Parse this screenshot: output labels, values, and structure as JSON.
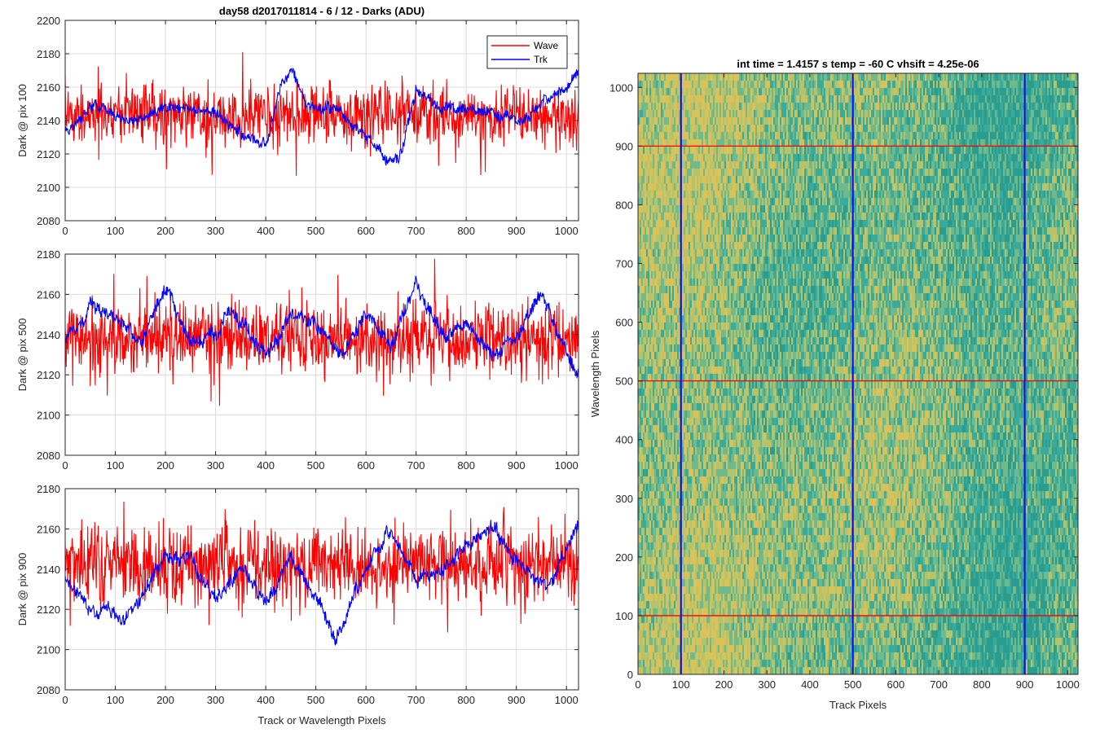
{
  "chart_data": [
    {
      "type": "line",
      "title": "day58 d2017011814 - 6 / 12 - Darks (ADU)",
      "xlabel": "",
      "ylabel": "Dark @ pix 100",
      "xlim": [
        0,
        1024
      ],
      "ylim": [
        2080,
        2200
      ],
      "xticks": [
        0,
        100,
        200,
        300,
        400,
        500,
        600,
        700,
        800,
        900,
        1000
      ],
      "yticks": [
        2080,
        2100,
        2120,
        2140,
        2160,
        2180,
        2200
      ],
      "grid": true,
      "legend": {
        "position": "top-right",
        "entries": [
          "Wave",
          "Trk"
        ]
      },
      "series": [
        {
          "name": "Wave",
          "color": "#ff0000",
          "mean": 2143,
          "noise": 11,
          "features": []
        },
        {
          "name": "Trk",
          "color": "#0000ff",
          "mean": 2143,
          "noise": 4,
          "features": [
            [
              0,
              2133
            ],
            [
              60,
              2150
            ],
            [
              120,
              2140
            ],
            [
              200,
              2148
            ],
            [
              300,
              2145
            ],
            [
              350,
              2132
            ],
            [
              400,
              2125
            ],
            [
              430,
              2160
            ],
            [
              450,
              2172
            ],
            [
              480,
              2150
            ],
            [
              550,
              2145
            ],
            [
              650,
              2115
            ],
            [
              670,
              2120
            ],
            [
              700,
              2158
            ],
            [
              750,
              2148
            ],
            [
              850,
              2145
            ],
            [
              900,
              2140
            ],
            [
              1000,
              2160
            ],
            [
              1024,
              2170
            ]
          ]
        }
      ]
    },
    {
      "type": "line",
      "title": "",
      "xlabel": "",
      "ylabel": "Dark @ pix 500",
      "xlim": [
        0,
        1024
      ],
      "ylim": [
        2080,
        2180
      ],
      "xticks": [
        0,
        100,
        200,
        300,
        400,
        500,
        600,
        700,
        800,
        900,
        1000
      ],
      "yticks": [
        2080,
        2100,
        2120,
        2140,
        2160,
        2180
      ],
      "grid": true,
      "series": [
        {
          "name": "Wave",
          "color": "#ff0000",
          "mean": 2138,
          "noise": 11,
          "features": []
        },
        {
          "name": "Trk",
          "color": "#0000ff",
          "mean": 2142,
          "noise": 4,
          "features": [
            [
              0,
              2135
            ],
            [
              50,
              2155
            ],
            [
              100,
              2150
            ],
            [
              150,
              2135
            ],
            [
              200,
              2165
            ],
            [
              250,
              2135
            ],
            [
              300,
              2140
            ],
            [
              330,
              2152
            ],
            [
              400,
              2130
            ],
            [
              450,
              2150
            ],
            [
              500,
              2145
            ],
            [
              550,
              2130
            ],
            [
              600,
              2150
            ],
            [
              650,
              2135
            ],
            [
              700,
              2165
            ],
            [
              750,
              2140
            ],
            [
              800,
              2145
            ],
            [
              850,
              2130
            ],
            [
              900,
              2140
            ],
            [
              950,
              2160
            ],
            [
              1000,
              2130
            ],
            [
              1024,
              2120
            ]
          ]
        }
      ]
    },
    {
      "type": "line",
      "title": "",
      "xlabel": "Track or Wavelength Pixels",
      "ylabel": "Dark @ pix 900",
      "xlim": [
        0,
        1024
      ],
      "ylim": [
        2080,
        2180
      ],
      "xticks": [
        0,
        100,
        200,
        300,
        400,
        500,
        600,
        700,
        800,
        900,
        1000
      ],
      "yticks": [
        2080,
        2100,
        2120,
        2140,
        2160,
        2180
      ],
      "grid": true,
      "series": [
        {
          "name": "Wave",
          "color": "#ff0000",
          "mean": 2142,
          "noise": 12,
          "features": []
        },
        {
          "name": "Trk",
          "color": "#0000ff",
          "mean": 2138,
          "noise": 4,
          "features": [
            [
              0,
              2135
            ],
            [
              50,
              2120
            ],
            [
              120,
              2115
            ],
            [
              200,
              2145
            ],
            [
              250,
              2145
            ],
            [
              300,
              2125
            ],
            [
              350,
              2140
            ],
            [
              400,
              2125
            ],
            [
              450,
              2145
            ],
            [
              500,
              2125
            ],
            [
              540,
              2105
            ],
            [
              600,
              2140
            ],
            [
              650,
              2160
            ],
            [
              700,
              2135
            ],
            [
              750,
              2140
            ],
            [
              800,
              2150
            ],
            [
              850,
              2160
            ],
            [
              900,
              2145
            ],
            [
              960,
              2130
            ],
            [
              1000,
              2150
            ],
            [
              1024,
              2160
            ]
          ]
        }
      ]
    },
    {
      "type": "heatmap",
      "title": "int time = 1.4157 s    temp = -60 C    vhsift = 4.25e-06",
      "xlabel": "Track Pixels",
      "ylabel": "Wavelength Pixels",
      "xlim": [
        0,
        1024
      ],
      "ylim": [
        0,
        1024
      ],
      "xticks": [
        0,
        100,
        200,
        300,
        400,
        500,
        600,
        700,
        800,
        900,
        1000
      ],
      "yticks": [
        0,
        100,
        200,
        300,
        400,
        500,
        600,
        700,
        800,
        900,
        1000
      ],
      "grid": false,
      "colormap": [
        "#2a9d8f",
        "#3aaa9a",
        "#6fb98a",
        "#b5c46a",
        "#d9c25a"
      ],
      "vertical_lines": {
        "positions": [
          100,
          500,
          900
        ],
        "color": "#0000ff"
      },
      "horizontal_lines": {
        "positions": [
          100,
          500,
          900
        ],
        "color": "#ff0000"
      }
    }
  ]
}
